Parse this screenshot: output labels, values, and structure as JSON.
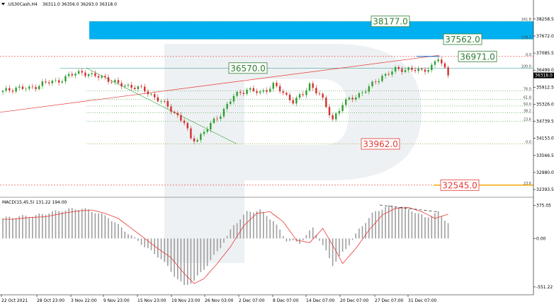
{
  "header": {
    "symbol": ".US30Cash,H4",
    "ohlc": "36311.0 36356.0 36293.0 36318.0"
  },
  "macd_label": "MACD(15,45,5) 131.22 194.00",
  "chart_data": [
    {
      "type": "candlestick",
      "title": ".US30Cash,H4",
      "x_ticks": [
        "22 Oct 2021",
        "28 Oct 23:00",
        "3 Nov 22:00",
        "9 Nov 23:00",
        "15 Nov 23:00",
        "19 Nov 23:00",
        "26 Nov 03:00",
        "2 Dec 07:00",
        "8 Dec 07:00",
        "14 Dec 07:00",
        "20 Dec 07:00",
        "27 Dec 07:00",
        "31 Dec 07:00"
      ],
      "y_ticks": [
        38258.5,
        37672.0,
        37085.5,
        36499.0,
        35912.5,
        35326.0,
        34739.5,
        34153.0,
        33566.5,
        32980.0,
        32393.5
      ],
      "ylim": [
        32200,
        38620
      ],
      "current_price": 36318.0,
      "close_path": [
        [
          0,
          35750
        ],
        [
          4,
          35900
        ],
        [
          8,
          35850
        ],
        [
          12,
          36050
        ],
        [
          16,
          36100
        ],
        [
          20,
          36300
        ],
        [
          24,
          36450
        ],
        [
          27,
          36300
        ],
        [
          31,
          36250
        ],
        [
          35,
          36000
        ],
        [
          39,
          35950
        ],
        [
          43,
          35800
        ],
        [
          47,
          35500
        ],
        [
          51,
          35150
        ],
        [
          55,
          34700
        ],
        [
          57,
          34100
        ],
        [
          59,
          34150
        ],
        [
          62,
          34500
        ],
        [
          66,
          35000
        ],
        [
          70,
          35600
        ],
        [
          74,
          35850
        ],
        [
          78,
          35700
        ],
        [
          82,
          36000
        ],
        [
          86,
          35600
        ],
        [
          88,
          35450
        ],
        [
          91,
          35650
        ],
        [
          93,
          36000
        ],
        [
          96,
          35700
        ],
        [
          98,
          35200
        ],
        [
          100,
          34800
        ],
        [
          103,
          35350
        ],
        [
          107,
          35600
        ],
        [
          111,
          35900
        ],
        [
          115,
          36300
        ],
        [
          119,
          36500
        ],
        [
          123,
          36550
        ],
        [
          127,
          36450
        ],
        [
          130,
          36650
        ],
        [
          132,
          36900
        ],
        [
          133,
          36700
        ],
        [
          135,
          36318
        ]
      ],
      "fibonacci_levels": [
        {
          "label": "161.8",
          "price": 38177.0
        },
        {
          "label": "138.2",
          "price": 37562.0
        },
        {
          "label": "0.0",
          "price": 36971.0
        },
        {
          "label": "100.0",
          "price": 36570.0
        },
        {
          "label": "76.0",
          "price": 35785.0
        },
        {
          "label": "61.8",
          "price": 35500.0
        },
        {
          "label": "50.0",
          "price": 35266.0
        },
        {
          "label": "38.2",
          "price": 35032.0
        },
        {
          "label": "23.6",
          "price": 34743.0
        },
        {
          "label": "0.0",
          "price": 33962.0
        },
        {
          "label": "23.6",
          "price": 32545.0
        }
      ],
      "annotations": [
        {
          "text": "38177.0",
          "price": 38177.0,
          "color": "#2e7d32"
        },
        {
          "text": "37562.0",
          "price": 37562.0,
          "color": "#2e7d32"
        },
        {
          "text": "36971.0",
          "price": 36971.0,
          "color": "#2e7d32"
        },
        {
          "text": "36570.0",
          "price": 36570.0,
          "color": "#2e7d32"
        },
        {
          "text": "33962.0",
          "price": 33962.0,
          "color": "#e53935"
        },
        {
          "text": "32545.0",
          "price": 32545.0,
          "color": "#e53935"
        }
      ],
      "target_zone": {
        "from": 37562.0,
        "to": 38177.0,
        "color": "#00b0f0"
      },
      "colors": {
        "bull": "#2e9e2e",
        "bear": "#d32f2f",
        "resistance": "#e53935",
        "support": "#2e9e2e"
      }
    },
    {
      "type": "histogram",
      "title": "MACD(15,45,5) 131.22 194.00",
      "y_ticks": [
        375.05,
        0.0,
        -551.22
      ],
      "ylim": [
        -600,
        420
      ],
      "histogram_path": [
        [
          0,
          230
        ],
        [
          5,
          250
        ],
        [
          10,
          260
        ],
        [
          15,
          300
        ],
        [
          20,
          330
        ],
        [
          24,
          340
        ],
        [
          28,
          300
        ],
        [
          32,
          240
        ],
        [
          36,
          120
        ],
        [
          40,
          0
        ],
        [
          44,
          -120
        ],
        [
          48,
          -230
        ],
        [
          52,
          -420
        ],
        [
          55,
          -540
        ],
        [
          58,
          -480
        ],
        [
          62,
          -300
        ],
        [
          66,
          -100
        ],
        [
          70,
          150
        ],
        [
          74,
          300
        ],
        [
          78,
          320
        ],
        [
          82,
          200
        ],
        [
          86,
          -20
        ],
        [
          90,
          -50
        ],
        [
          94,
          120
        ],
        [
          98,
          -150
        ],
        [
          100,
          -300
        ],
        [
          104,
          -120
        ],
        [
          108,
          100
        ],
        [
          112,
          280
        ],
        [
          116,
          360
        ],
        [
          120,
          370
        ],
        [
          124,
          320
        ],
        [
          128,
          240
        ],
        [
          132,
          290
        ],
        [
          135,
          180
        ]
      ]
    }
  ]
}
